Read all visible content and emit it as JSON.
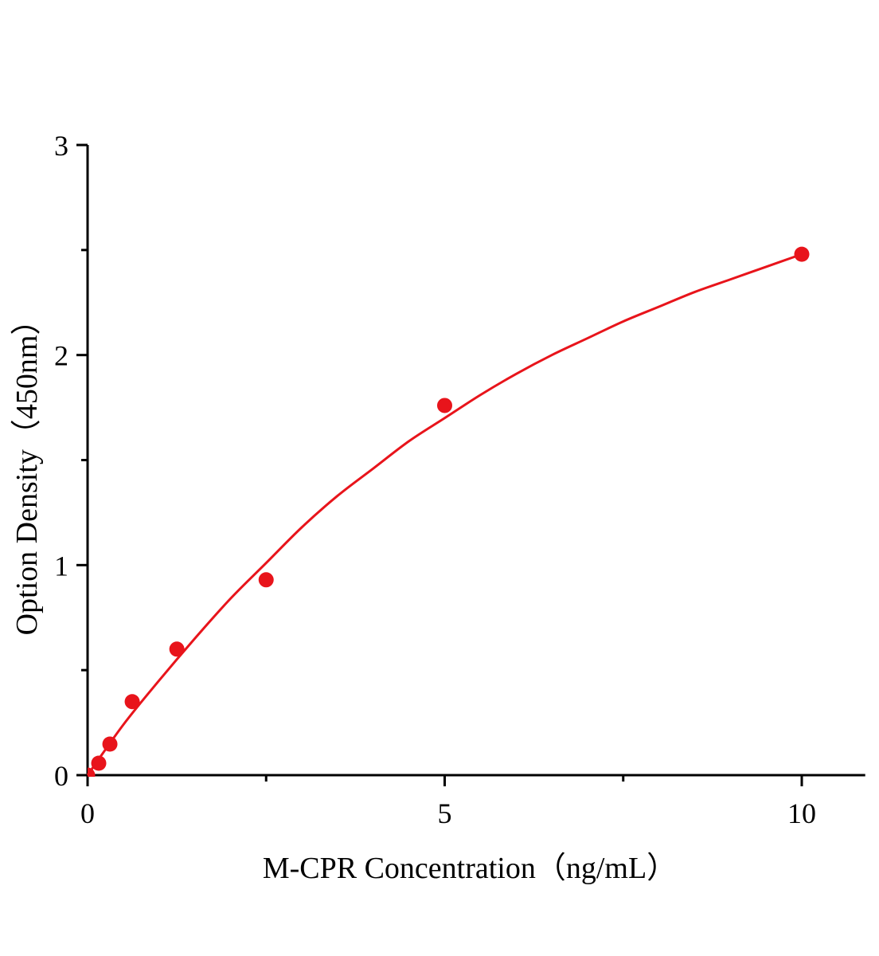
{
  "chart_data": {
    "type": "scatter",
    "title": "",
    "xlabel": "M-CPR Concentration（ng/mL）",
    "ylabel": "Option Density（450nm）",
    "xlim": [
      0,
      11
    ],
    "ylim": [
      0,
      3
    ],
    "x_ticks": [
      0,
      5,
      10
    ],
    "x_tick_labels": [
      "0",
      "5",
      "10"
    ],
    "x_minor_ticks": [
      2.5,
      7.5
    ],
    "y_ticks": [
      0,
      1,
      2,
      3
    ],
    "y_tick_labels": [
      "0",
      "1",
      "2",
      "3"
    ],
    "y_minor_ticks": [
      0.5,
      1.5,
      2.5
    ],
    "grid": false,
    "color": "#e8141b",
    "points": [
      {
        "x": 0,
        "y": 0.0
      },
      {
        "x": 0.156,
        "y": 0.057
      },
      {
        "x": 0.3125,
        "y": 0.148
      },
      {
        "x": 0.625,
        "y": 0.35
      },
      {
        "x": 1.25,
        "y": 0.6
      },
      {
        "x": 2.5,
        "y": 0.93
      },
      {
        "x": 5,
        "y": 1.76
      },
      {
        "x": 10,
        "y": 2.48
      }
    ],
    "fit_curve": [
      {
        "x": 0,
        "y": 0
      },
      {
        "x": 0.5,
        "y": 0.24
      },
      {
        "x": 1,
        "y": 0.45
      },
      {
        "x": 1.5,
        "y": 0.65
      },
      {
        "x": 2,
        "y": 0.84
      },
      {
        "x": 2.5,
        "y": 1.01
      },
      {
        "x": 3,
        "y": 1.18
      },
      {
        "x": 3.5,
        "y": 1.33
      },
      {
        "x": 4,
        "y": 1.46
      },
      {
        "x": 4.5,
        "y": 1.59
      },
      {
        "x": 5,
        "y": 1.7
      },
      {
        "x": 5.5,
        "y": 1.81
      },
      {
        "x": 6,
        "y": 1.91
      },
      {
        "x": 6.5,
        "y": 2.0
      },
      {
        "x": 7,
        "y": 2.08
      },
      {
        "x": 7.5,
        "y": 2.16
      },
      {
        "x": 8,
        "y": 2.23
      },
      {
        "x": 8.5,
        "y": 2.3
      },
      {
        "x": 9,
        "y": 2.36
      },
      {
        "x": 9.5,
        "y": 2.42
      },
      {
        "x": 10,
        "y": 2.48
      }
    ]
  }
}
